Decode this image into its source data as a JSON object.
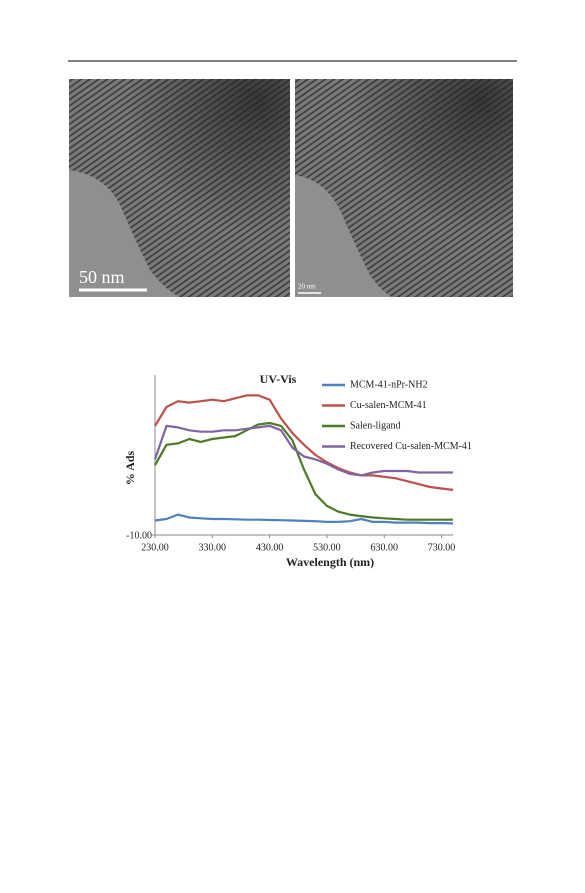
{
  "figures": [
    {
      "scale_label": "50 nm"
    },
    {
      "scale_label": "20 nm"
    }
  ],
  "chart_data": {
    "type": "line",
    "title": "UV-Vis",
    "x_label": "Wavelength (nm)",
    "y_label": "% Ads",
    "x": [
      230,
      250,
      270,
      290,
      310,
      330,
      350,
      370,
      390,
      410,
      430,
      450,
      470,
      490,
      510,
      530,
      550,
      570,
      590,
      610,
      630,
      650,
      670,
      690,
      710,
      730,
      750
    ],
    "series": [
      {
        "name": "MCM-41-nPr-NH2",
        "color": "#4f81bd",
        "values": [
          0,
          1,
          4,
          2,
          1.5,
          1,
          1,
          0.8,
          0.5,
          0.5,
          0.3,
          0.2,
          0,
          -0.3,
          -0.5,
          -1,
          -1,
          -0.5,
          1,
          -1,
          -1,
          -1.5,
          -1.5,
          -1.5,
          -1.8,
          -1.8,
          -2
        ]
      },
      {
        "name": "Cu-salen-MCM-41",
        "color": "#c0504d",
        "values": [
          65,
          78,
          82,
          81,
          82,
          83,
          82,
          84,
          86,
          86,
          83,
          70,
          60,
          52,
          45,
          40,
          36,
          33,
          31,
          31,
          30,
          29,
          27,
          25,
          23,
          22,
          21
        ]
      },
      {
        "name": "Salen-ligand",
        "color": "#4f7a28",
        "values": [
          38,
          52,
          53,
          56,
          54,
          56,
          57,
          58,
          62,
          66,
          67,
          65,
          55,
          35,
          18,
          10,
          6,
          4,
          3,
          2,
          1.5,
          1,
          0.5,
          0.5,
          0.5,
          0.5,
          0.5
        ]
      },
      {
        "name": "Recovered Cu-salen-MCM-41",
        "color": "#8064a2",
        "values": [
          42,
          65,
          64,
          62,
          61,
          61,
          62,
          62,
          63,
          64,
          65,
          62,
          50,
          44,
          42,
          39,
          35,
          32,
          31,
          33,
          34,
          34,
          34,
          33,
          33,
          33,
          33
        ]
      }
    ],
    "xlim": [
      230,
      750
    ],
    "xticks": [
      {
        "value": 230,
        "label": "230.00"
      },
      {
        "value": 330,
        "label": "330.00"
      },
      {
        "value": 430,
        "label": "430.00"
      },
      {
        "value": 530,
        "label": "530.00"
      },
      {
        "value": 630,
        "label": "630.00"
      },
      {
        "value": 730,
        "label": "730.00"
      }
    ],
    "ylim": [
      -10,
      100
    ],
    "yticks": [
      {
        "value": -10,
        "label": "-10.00"
      }
    ],
    "legend": "top-right"
  }
}
